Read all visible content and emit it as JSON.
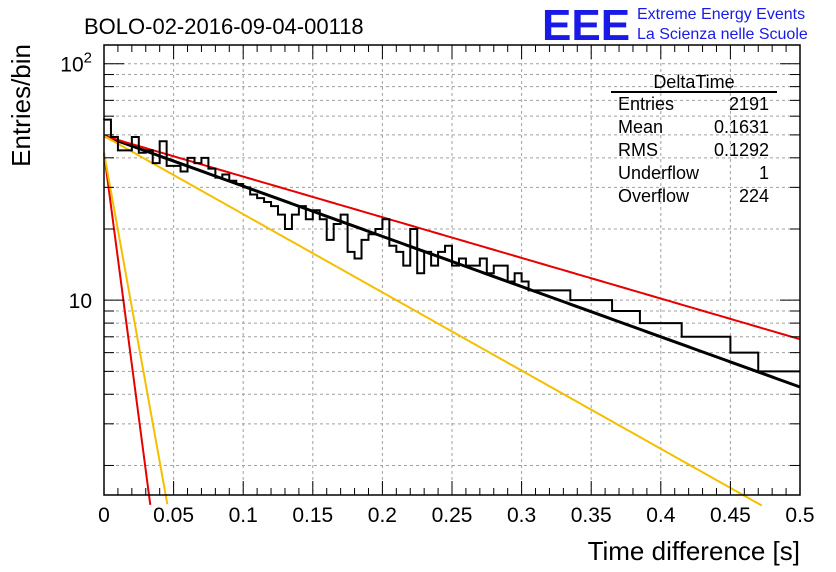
{
  "title": "BOLO-02-2016-09-04-00118",
  "logo": {
    "big": "EEE",
    "line1": "Extreme Energy Events",
    "line2": "La Scienza nelle Scuole",
    "color": "#1a1ae6"
  },
  "stats": {
    "title": "DeltaTime",
    "rows": [
      {
        "label": "Entries",
        "value": "2191"
      },
      {
        "label": "Mean",
        "value": "0.1631"
      },
      {
        "label": "RMS",
        "value": "0.1292"
      },
      {
        "label": "Underflow",
        "value": "1"
      },
      {
        "label": "Overflow",
        "value": "224"
      }
    ]
  },
  "chart_data": {
    "type": "step-histogram",
    "xlabel": "Time difference [s]",
    "ylabel": "Entries/bin",
    "xlim": [
      0,
      0.5
    ],
    "ylim": [
      1.5,
      120
    ],
    "yscale": "log",
    "grid": true,
    "x_ticks": [
      "0",
      "0.05",
      "0.1",
      "0.15",
      "0.2",
      "0.25",
      "0.3",
      "0.35",
      "0.4",
      "0.45",
      "0.5"
    ],
    "y_tick_labels": [
      {
        "value": 10,
        "label": "10"
      },
      {
        "value": 100,
        "label": "10",
        "sup": "2"
      }
    ],
    "bin_width": 0.005,
    "histogram": [
      58,
      49,
      43,
      43,
      49,
      42,
      43,
      38,
      47,
      37,
      37,
      35,
      40,
      38,
      40,
      36,
      33,
      34,
      32,
      31,
      30,
      28,
      27,
      26,
      25,
      23,
      20,
      23,
      25,
      22,
      24,
      22,
      18,
      21,
      23,
      16,
      15,
      18,
      19,
      20,
      22,
      17,
      16,
      14,
      20,
      13,
      16,
      14,
      16,
      17,
      14,
      15,
      14,
      14,
      15,
      13,
      14,
      14,
      12,
      13,
      12,
      11,
      11,
      11,
      11,
      11,
      11,
      10,
      10,
      10,
      10,
      10,
      10,
      9,
      9,
      9,
      9,
      8,
      8,
      8,
      8,
      8,
      8,
      7,
      7,
      7,
      7,
      7,
      7,
      7,
      6,
      6,
      6,
      6,
      5,
      5,
      5,
      5,
      5,
      5
    ],
    "fits": [
      {
        "color": "#000000",
        "width": 3,
        "A": 49.5,
        "tau": 0.2045,
        "x_range": [
          0,
          0.5
        ]
      },
      {
        "color": "#e60000",
        "width": 2,
        "A": 49.5,
        "tau": 0.2526,
        "x_range": [
          0,
          0.5
        ]
      },
      {
        "color": "#f5bf00",
        "width": 2,
        "A": 49.5,
        "tau": 0.1313,
        "x_range": [
          0,
          0.5
        ]
      },
      {
        "color": "#e60000",
        "width": 2,
        "A": 42,
        "tau": 0.0097,
        "x_range": [
          0,
          0.05
        ]
      },
      {
        "color": "#f5bf00",
        "width": 2,
        "A": 42,
        "tau": 0.0133,
        "x_range": [
          0,
          0.05
        ]
      }
    ]
  }
}
